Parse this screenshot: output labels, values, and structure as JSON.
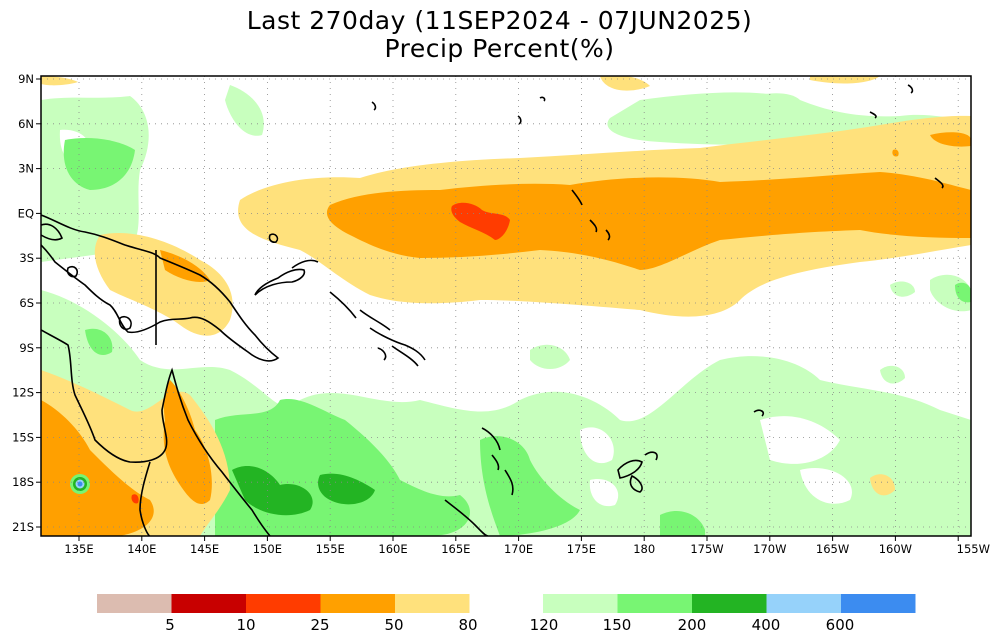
{
  "title": {
    "line1": "Last 270day (11SEP2024 - 07JUN2025)",
    "line2": "Precip Percent(%)"
  },
  "map": {
    "lat_labels": [
      "9N",
      "6N",
      "3N",
      "EQ",
      "3S",
      "6S",
      "9S",
      "12S",
      "15S",
      "18S",
      "21S"
    ],
    "lon_labels": [
      "135E",
      "140E",
      "145E",
      "150E",
      "155E",
      "160E",
      "165E",
      "170E",
      "175E",
      "180",
      "175W",
      "170W",
      "165W",
      "160W",
      "155W"
    ]
  },
  "colors": {
    "c_lt5": "#dcbcb0",
    "c_5_10": "#c80000",
    "c_10_25": "#ff3c00",
    "c_25_50": "#ffa000",
    "c_50_80": "#ffe17c",
    "c_120_150": "#c8ffbe",
    "c_150_200": "#78f573",
    "c_200_400": "#23b423",
    "c_400_600": "#96d2fa",
    "c_gt600": "#3c8cf0",
    "land_outline": "#000000",
    "grid": "#888888"
  },
  "legend": {
    "labels": [
      "5",
      "10",
      "25",
      "50",
      "80",
      "120",
      "150",
      "200",
      "400",
      "600"
    ]
  }
}
